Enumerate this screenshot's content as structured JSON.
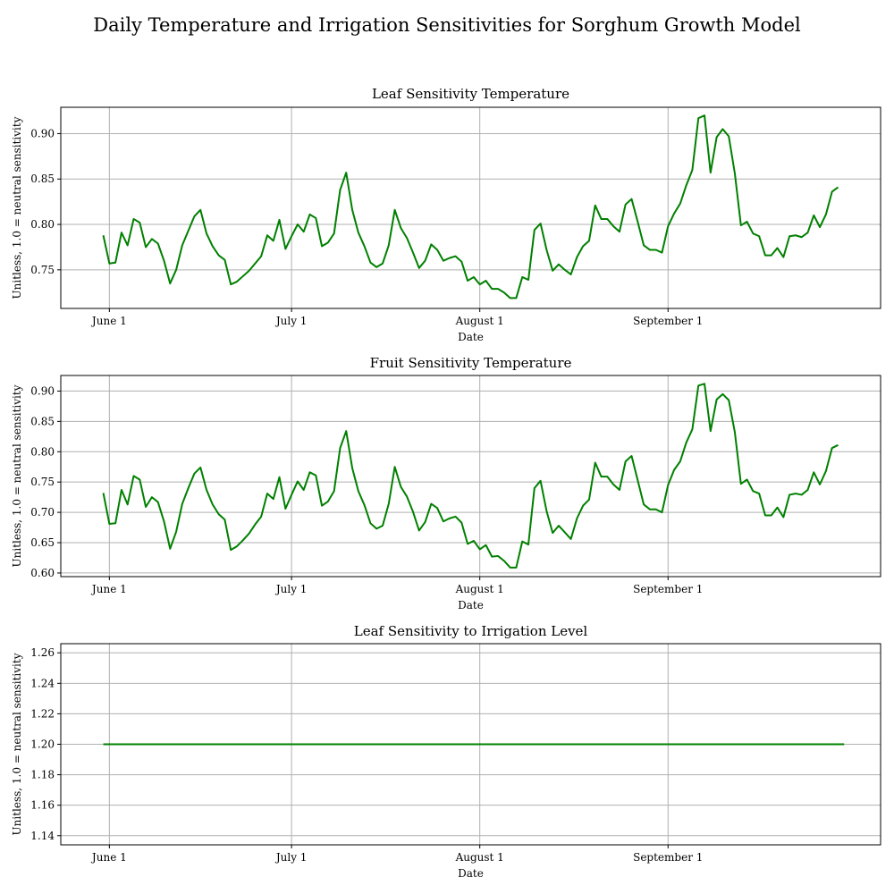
{
  "figure": {
    "title": "Daily Temperature and Irrigation Sensitivities for Sorghum Growth Model",
    "line_color": "#008000",
    "grid_color": "#b0b0b0"
  },
  "chart_data": [
    {
      "type": "line",
      "title": "Leaf Sensitivity Temperature",
      "xlabel": "Date",
      "ylabel": "Unitless, 1.0 = neutral sensitivity",
      "grid": true,
      "x_start": "2023-05-31",
      "x_end": "2023-09-30",
      "x_ticks": [
        {
          "date": "2023-06-01",
          "label": "June 1"
        },
        {
          "date": "2023-07-01",
          "label": "July 1"
        },
        {
          "date": "2023-08-01",
          "label": "August 1"
        },
        {
          "date": "2023-09-01",
          "label": "September 1"
        }
      ],
      "y_ticks": [
        {
          "value": 0.75,
          "label": "0.75"
        },
        {
          "value": 0.8,
          "label": "0.80"
        },
        {
          "value": 0.85,
          "label": "0.85"
        },
        {
          "value": 0.9,
          "label": "0.90"
        }
      ],
      "ylim": [
        0.7075,
        0.929
      ],
      "xlim": [
        "2023-05-24",
        "2023-10-06"
      ],
      "values": [
        0.788,
        0.757,
        0.758,
        0.791,
        0.777,
        0.806,
        0.802,
        0.775,
        0.784,
        0.779,
        0.76,
        0.735,
        0.75,
        0.777,
        0.793,
        0.809,
        0.816,
        0.79,
        0.776,
        0.766,
        0.761,
        0.734,
        0.737,
        0.743,
        0.749,
        0.757,
        0.765,
        0.788,
        0.782,
        0.805,
        0.773,
        0.787,
        0.8,
        0.792,
        0.811,
        0.807,
        0.776,
        0.78,
        0.79,
        0.838,
        0.857,
        0.816,
        0.791,
        0.776,
        0.758,
        0.753,
        0.757,
        0.777,
        0.816,
        0.796,
        0.785,
        0.769,
        0.752,
        0.76,
        0.778,
        0.772,
        0.76,
        0.763,
        0.765,
        0.759,
        0.738,
        0.742,
        0.734,
        0.738,
        0.729,
        0.729,
        0.725,
        0.719,
        0.719,
        0.742,
        0.739,
        0.794,
        0.801,
        0.772,
        0.749,
        0.756,
        0.75,
        0.745,
        0.764,
        0.776,
        0.782,
        0.821,
        0.806,
        0.806,
        0.798,
        0.792,
        0.822,
        0.828,
        0.803,
        0.777,
        0.772,
        0.772,
        0.769,
        0.798,
        0.812,
        0.823,
        0.843,
        0.86,
        0.917,
        0.92,
        0.857,
        0.896,
        0.905,
        0.897,
        0.856,
        0.799,
        0.803,
        0.79,
        0.787,
        0.766,
        0.766,
        0.774,
        0.764,
        0.787,
        0.788,
        0.786,
        0.791,
        0.81,
        0.797,
        0.811,
        0.836,
        0.841
      ]
    },
    {
      "type": "line",
      "title": "Fruit Sensitivity Temperature",
      "xlabel": "Date",
      "ylabel": "Unitless, 1.0 = neutral sensitivity",
      "grid": true,
      "x_start": "2023-05-31",
      "x_end": "2023-09-30",
      "x_ticks": [
        {
          "date": "2023-06-01",
          "label": "June 1"
        },
        {
          "date": "2023-07-01",
          "label": "July 1"
        },
        {
          "date": "2023-08-01",
          "label": "August 1"
        },
        {
          "date": "2023-09-01",
          "label": "September 1"
        }
      ],
      "y_ticks": [
        {
          "value": 0.6,
          "label": "0.60"
        },
        {
          "value": 0.65,
          "label": "0.65"
        },
        {
          "value": 0.7,
          "label": "0.70"
        },
        {
          "value": 0.75,
          "label": "0.75"
        },
        {
          "value": 0.8,
          "label": "0.80"
        },
        {
          "value": 0.85,
          "label": "0.85"
        },
        {
          "value": 0.9,
          "label": "0.90"
        }
      ],
      "ylim": [
        0.594,
        0.9257
      ],
      "xlim": [
        "2023-05-24",
        "2023-10-06"
      ],
      "values": [
        0.732,
        0.681,
        0.682,
        0.737,
        0.713,
        0.76,
        0.754,
        0.709,
        0.725,
        0.717,
        0.685,
        0.64,
        0.668,
        0.714,
        0.74,
        0.764,
        0.774,
        0.737,
        0.713,
        0.697,
        0.688,
        0.638,
        0.644,
        0.654,
        0.665,
        0.68,
        0.693,
        0.731,
        0.722,
        0.758,
        0.706,
        0.729,
        0.751,
        0.737,
        0.766,
        0.761,
        0.711,
        0.718,
        0.735,
        0.806,
        0.834,
        0.773,
        0.735,
        0.712,
        0.682,
        0.673,
        0.678,
        0.714,
        0.775,
        0.742,
        0.726,
        0.701,
        0.67,
        0.684,
        0.714,
        0.707,
        0.685,
        0.69,
        0.693,
        0.683,
        0.648,
        0.653,
        0.639,
        0.646,
        0.627,
        0.628,
        0.62,
        0.609,
        0.609,
        0.652,
        0.647,
        0.74,
        0.752,
        0.702,
        0.666,
        0.678,
        0.667,
        0.656,
        0.69,
        0.711,
        0.721,
        0.782,
        0.759,
        0.759,
        0.746,
        0.737,
        0.784,
        0.793,
        0.753,
        0.713,
        0.705,
        0.705,
        0.7,
        0.745,
        0.77,
        0.784,
        0.815,
        0.837,
        0.909,
        0.912,
        0.834,
        0.886,
        0.895,
        0.885,
        0.832,
        0.747,
        0.754,
        0.735,
        0.731,
        0.695,
        0.695,
        0.708,
        0.692,
        0.729,
        0.731,
        0.729,
        0.737,
        0.766,
        0.746,
        0.768,
        0.806,
        0.811
      ]
    },
    {
      "type": "line",
      "title": "Leaf Sensitivity to Irrigation Level",
      "xlabel": "Date",
      "ylabel": "Unitless, 1.0 = neutral sensitivity",
      "grid": true,
      "x_start": "2023-05-31",
      "x_end": "2023-09-30",
      "x_ticks": [
        {
          "date": "2023-06-01",
          "label": "June 1"
        },
        {
          "date": "2023-07-01",
          "label": "July 1"
        },
        {
          "date": "2023-08-01",
          "label": "August 1"
        },
        {
          "date": "2023-09-01",
          "label": "September 1"
        }
      ],
      "y_ticks": [
        {
          "value": 1.14,
          "label": "1.14"
        },
        {
          "value": 1.16,
          "label": "1.16"
        },
        {
          "value": 1.18,
          "label": "1.18"
        },
        {
          "value": 1.2,
          "label": "1.20"
        },
        {
          "value": 1.22,
          "label": "1.22"
        },
        {
          "value": 1.24,
          "label": "1.24"
        },
        {
          "value": 1.26,
          "label": "1.26"
        }
      ],
      "ylim": [
        1.134,
        1.266
      ],
      "xlim": [
        "2023-05-24",
        "2023-10-06"
      ],
      "constant_value": 1.2
    }
  ]
}
